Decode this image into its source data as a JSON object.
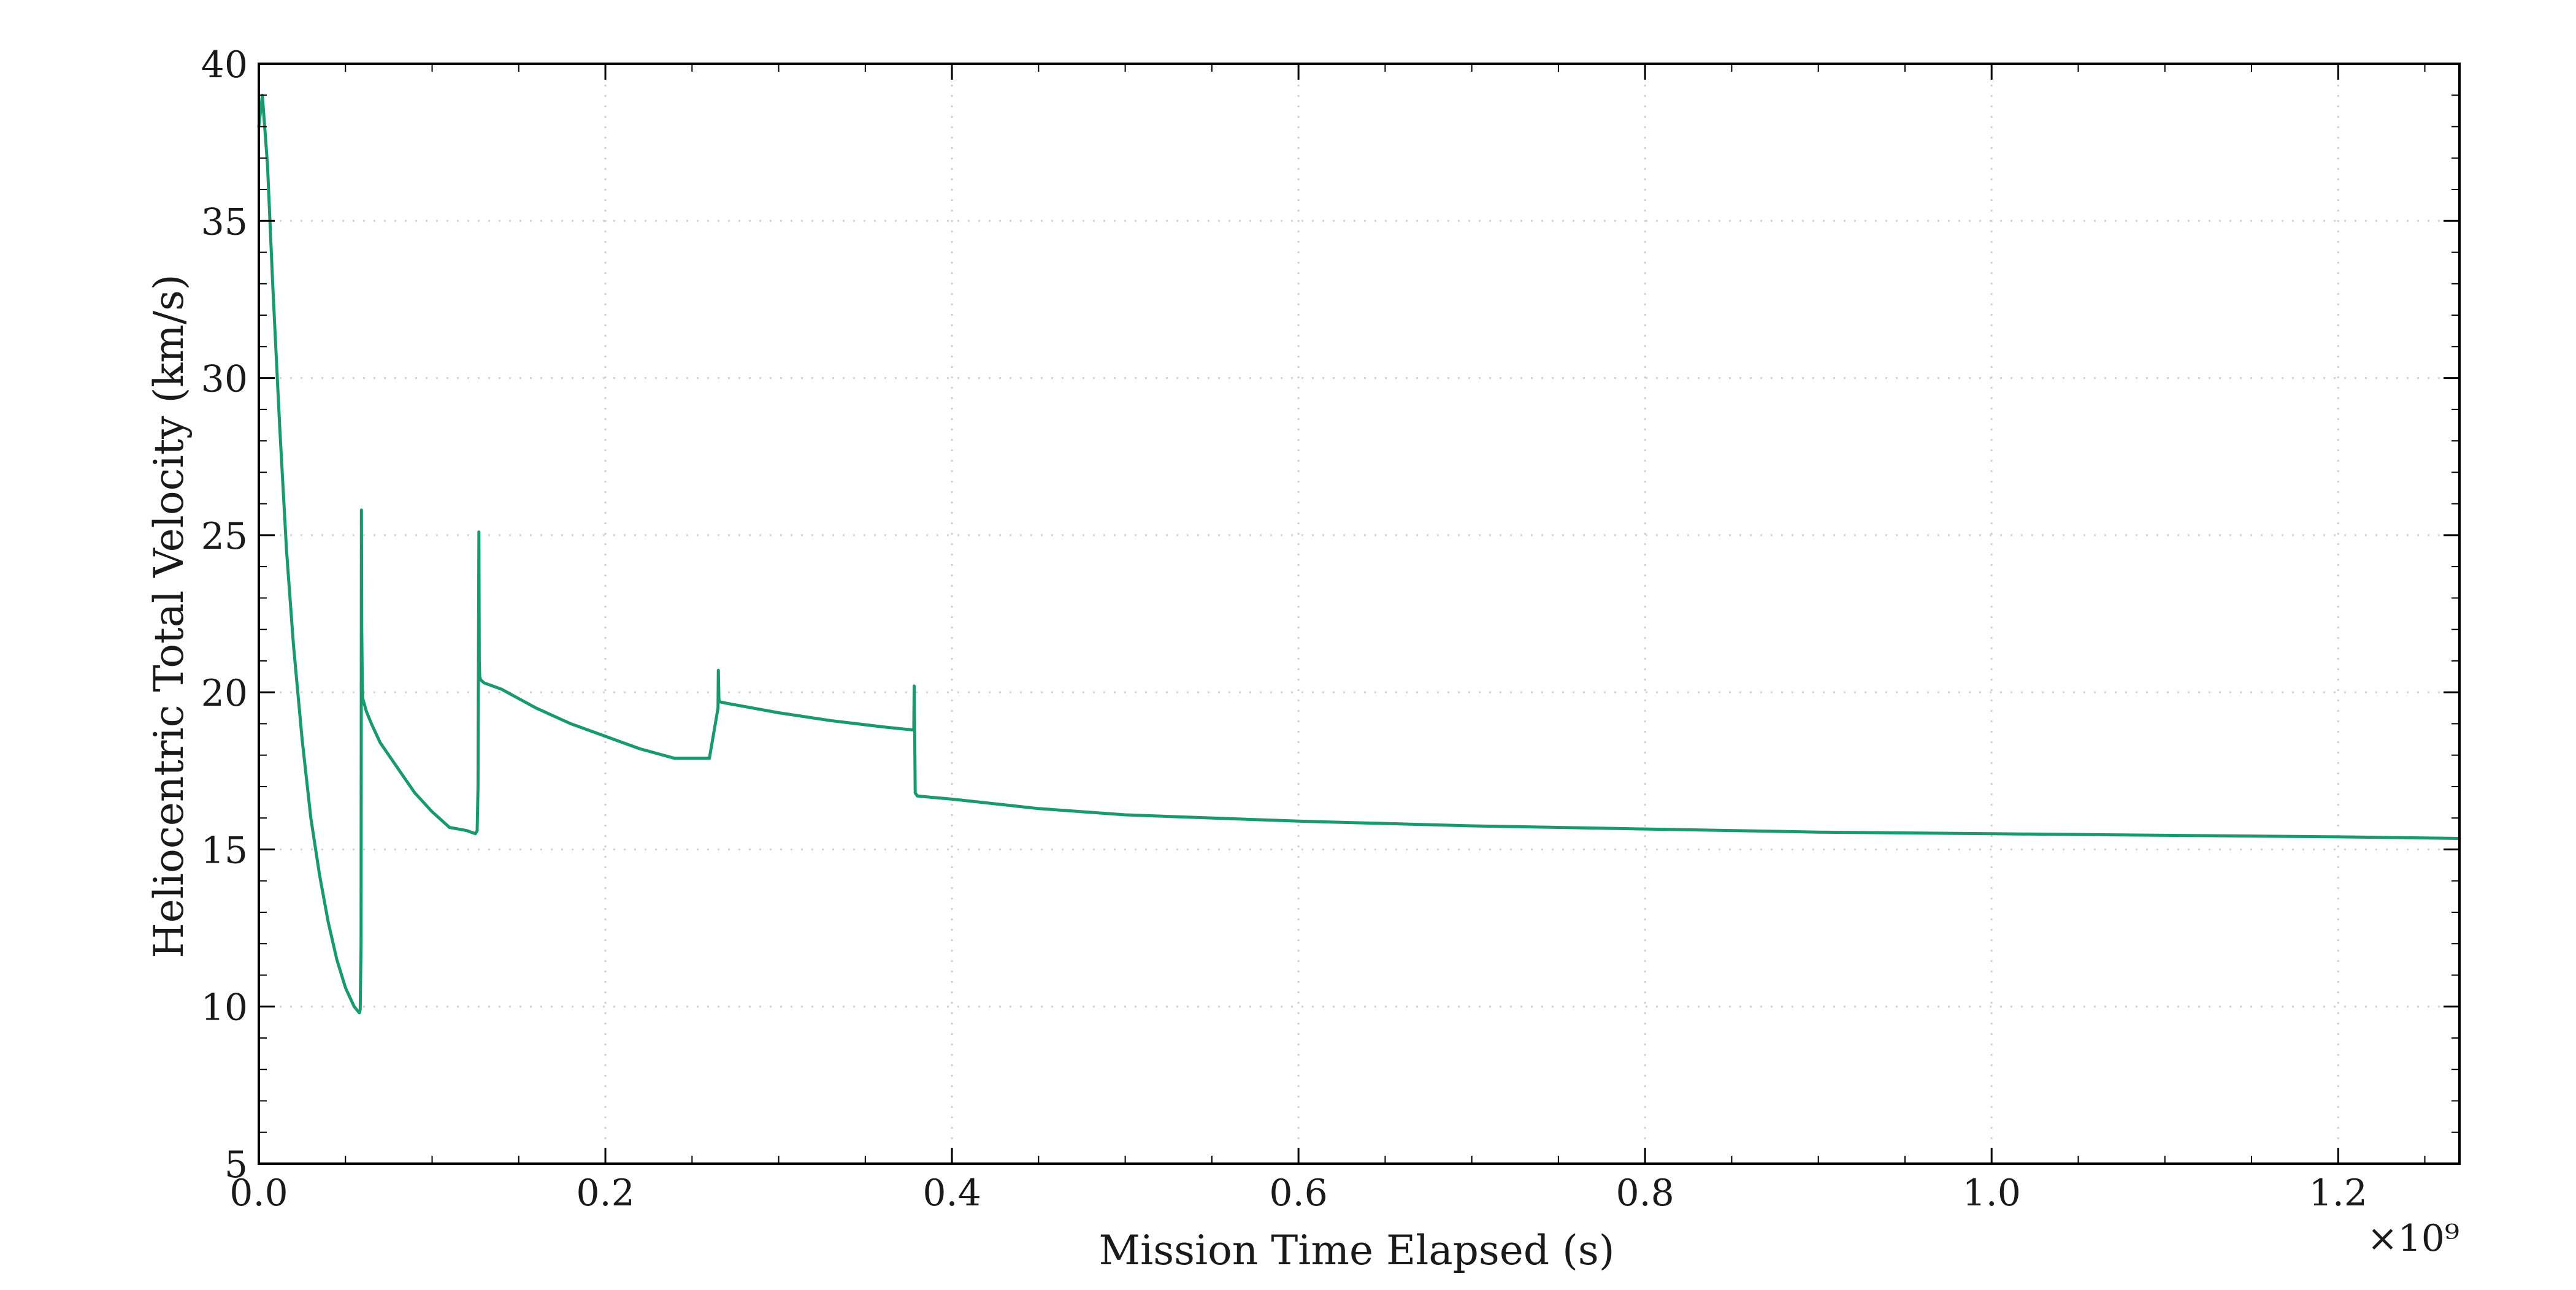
{
  "chart_data": {
    "type": "line",
    "xlabel": "Mission Time Elapsed (s)",
    "ylabel": "Heliocentric Total Velocity (km/s)",
    "x_scale_note": "×10⁹",
    "xlim": [
      0.0,
      1.27
    ],
    "ylim": [
      5,
      40
    ],
    "x_ticks": [
      0.0,
      0.2,
      0.4,
      0.6,
      0.8,
      1.0,
      1.2
    ],
    "x_tick_labels": [
      "0.0",
      "0.2",
      "0.4",
      "0.6",
      "0.8",
      "1.0",
      "1.2"
    ],
    "y_ticks": [
      5,
      10,
      15,
      20,
      25,
      30,
      35,
      40
    ],
    "y_tick_labels": [
      "5",
      "10",
      "15",
      "20",
      "25",
      "30",
      "35",
      "40"
    ],
    "grid": true,
    "line_color": "#1a9a6c",
    "series": [
      {
        "x": [
          0.0,
          0.002,
          0.005,
          0.008,
          0.012,
          0.016,
          0.02,
          0.025,
          0.03,
          0.035,
          0.04,
          0.045,
          0.05,
          0.055,
          0.058,
          0.0585,
          0.059,
          0.0592,
          0.0594,
          0.0597,
          0.06,
          0.062,
          0.065,
          0.07,
          0.08,
          0.09,
          0.1,
          0.11,
          0.12,
          0.125,
          0.126,
          0.1265,
          0.127,
          0.1272,
          0.1275,
          0.128,
          0.13,
          0.14,
          0.15,
          0.16,
          0.18,
          0.2,
          0.22,
          0.24,
          0.26,
          0.265,
          0.2652,
          0.2655,
          0.2658,
          0.27,
          0.3,
          0.33,
          0.36,
          0.378,
          0.3782,
          0.3785,
          0.3788,
          0.38,
          0.4,
          0.45,
          0.5,
          0.6,
          0.7,
          0.8,
          0.9,
          1.0,
          1.1,
          1.2,
          1.27
        ],
        "y": [
          38.0,
          39.0,
          36.8,
          33.0,
          28.5,
          24.5,
          21.5,
          18.5,
          16.0,
          14.2,
          12.7,
          11.5,
          10.6,
          10.0,
          9.8,
          9.9,
          12.0,
          25.8,
          22.0,
          20.3,
          19.8,
          19.4,
          19.0,
          18.4,
          17.6,
          16.8,
          16.2,
          15.7,
          15.6,
          15.5,
          15.6,
          17.0,
          25.1,
          21.0,
          20.5,
          20.4,
          20.3,
          20.1,
          19.8,
          19.5,
          19.0,
          18.6,
          18.2,
          17.9,
          17.9,
          19.5,
          20.7,
          19.8,
          19.7,
          19.65,
          19.35,
          19.1,
          18.9,
          18.8,
          20.2,
          18.8,
          16.8,
          16.7,
          16.6,
          16.3,
          16.1,
          15.9,
          15.75,
          15.65,
          15.55,
          15.5,
          15.45,
          15.4,
          15.35
        ]
      }
    ]
  }
}
